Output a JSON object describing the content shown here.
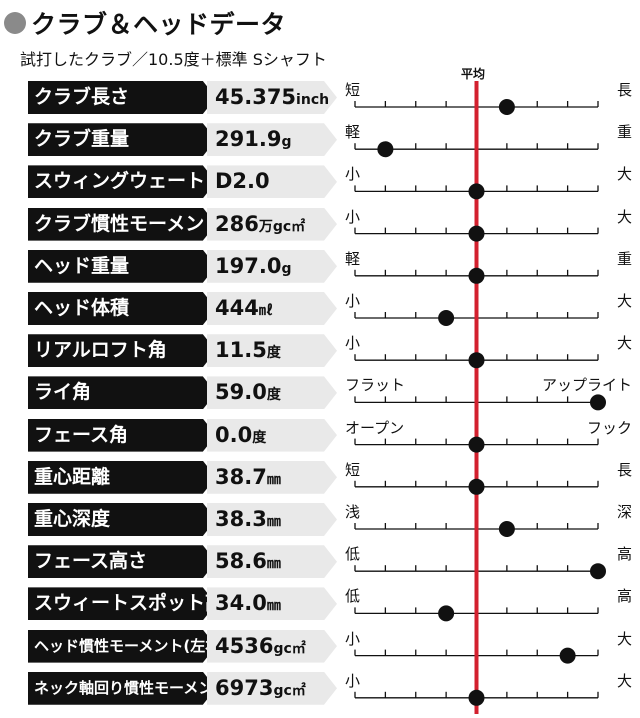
{
  "title": "クラブ＆ヘッドデータ",
  "subtitle": "試打したクラブ／10.5度＋標準 Sシャフト",
  "average_label": "平均",
  "colors": {
    "average_line": "#d3202e",
    "label_bg": "#111111",
    "value_bg": "#e9e9e9",
    "marker": "#111111"
  },
  "chart_data": {
    "type": "scatter",
    "title": "クラブ＆ヘッドデータ",
    "scale_note": "marker position on 8-interval scale (0 = left end, 4 = average, 8 = right end)",
    "xlim": [
      0,
      8
    ],
    "average": 4,
    "rows": [
      {
        "label": "クラブ長さ",
        "value": "45.375",
        "unit": "inch",
        "low": "短",
        "high": "長",
        "position": 5
      },
      {
        "label": "クラブ重量",
        "value": "291.9",
        "unit": "g",
        "low": "軽",
        "high": "重",
        "position": 1
      },
      {
        "label": "スウィングウェート",
        "value": "D2.0",
        "unit": "",
        "low": "小",
        "high": "大",
        "position": 4
      },
      {
        "label": "クラブ慣性モーメント",
        "value": "286",
        "unit": "万gc㎡",
        "low": "小",
        "high": "大",
        "position": 4
      },
      {
        "label": "ヘッド重量",
        "value": "197.0",
        "unit": "g",
        "low": "軽",
        "high": "重",
        "position": 4
      },
      {
        "label": "ヘッド体積",
        "value": "444",
        "unit": "㎖",
        "low": "小",
        "high": "大",
        "position": 3
      },
      {
        "label": "リアルロフト角",
        "value": "11.5",
        "unit": "度",
        "low": "小",
        "high": "大",
        "position": 4
      },
      {
        "label": "ライ角",
        "value": "59.0",
        "unit": "度",
        "low": "フラット",
        "high": "アップライト",
        "position": 8
      },
      {
        "label": "フェース角",
        "value": "0.0",
        "unit": "度",
        "low": "オープン",
        "high": "フック",
        "position": 4
      },
      {
        "label": "重心距離",
        "value": "38.7",
        "unit": "㎜",
        "low": "短",
        "high": "長",
        "position": 4
      },
      {
        "label": "重心深度",
        "value": "38.3",
        "unit": "㎜",
        "low": "浅",
        "high": "深",
        "position": 5
      },
      {
        "label": "フェース高さ",
        "value": "58.6",
        "unit": "㎜",
        "low": "低",
        "high": "高",
        "position": 8
      },
      {
        "label": "スウィートスポット高さ",
        "value": "34.0",
        "unit": "㎜",
        "low": "低",
        "high": "高",
        "position": 3
      },
      {
        "label": "ヘッド慣性モーメント(左右方向)",
        "value": "4536",
        "unit": "gc㎡",
        "low": "小",
        "high": "大",
        "position": 7
      },
      {
        "label": "ネック軸回り慣性モーメント",
        "value": "6973",
        "unit": "gc㎡",
        "low": "小",
        "high": "大",
        "position": 4
      }
    ]
  }
}
